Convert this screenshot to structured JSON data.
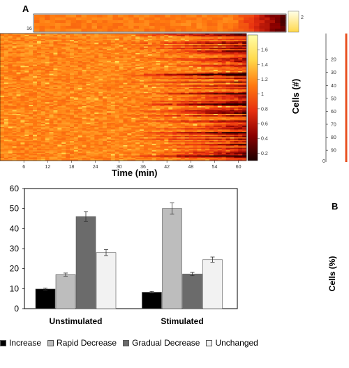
{
  "panel_a": {
    "letter": "A",
    "inset_label": "16",
    "inset_cbar_tick": "2",
    "chart_data": {
      "type": "heatmap",
      "title": "",
      "xlabel": "Time (min)",
      "ylabel": "Cells (#)",
      "x_ticks": [
        "6",
        "12",
        "18",
        "24",
        "30",
        "36",
        "42",
        "48",
        "54",
        "60"
      ],
      "y_ticks": [
        "20",
        "30",
        "40",
        "50",
        "60",
        "70",
        "80",
        "90"
      ],
      "y_zero_label": "0",
      "xlim": [
        0,
        62
      ],
      "ylim": [
        0,
        98
      ],
      "rows": 98,
      "colorbar": {
        "ticks": [
          "1.6",
          "1.4",
          "1.2",
          "1",
          "0.8",
          "0.6",
          "0.4",
          "0.2"
        ],
        "range": [
          0.1,
          1.8
        ],
        "colormap": [
          "#1c0000",
          "#8b0000",
          "#e83010",
          "#ff7a10",
          "#ffd84a",
          "#ffffa8"
        ]
      }
    }
  },
  "panel_b": {
    "letter": "B",
    "chart_data": {
      "type": "bar",
      "title": "",
      "xlabel": "",
      "ylabel": "Cells (%)",
      "ylim": [
        0,
        60
      ],
      "y_ticks": [
        "0",
        "10",
        "20",
        "30",
        "40",
        "50",
        "60"
      ],
      "categories": [
        "Unstimulated",
        "Stimulated"
      ],
      "series": [
        {
          "name": "Increase",
          "color": "#000000",
          "values": [
            9.8,
            8.2
          ],
          "errors": [
            0.5,
            0.4
          ]
        },
        {
          "name": "Rapid Decrease",
          "color": "#bdbdbd",
          "values": [
            17,
            50
          ],
          "errors": [
            0.8,
            2.8
          ]
        },
        {
          "name": "Gradual Decrease",
          "color": "#6b6b6b",
          "values": [
            46,
            17.3
          ],
          "errors": [
            2.5,
            0.8
          ]
        },
        {
          "name": "Unchanged",
          "color": "#f2f2f2",
          "values": [
            28,
            24.5
          ],
          "errors": [
            1.5,
            1.3
          ]
        }
      ]
    }
  }
}
